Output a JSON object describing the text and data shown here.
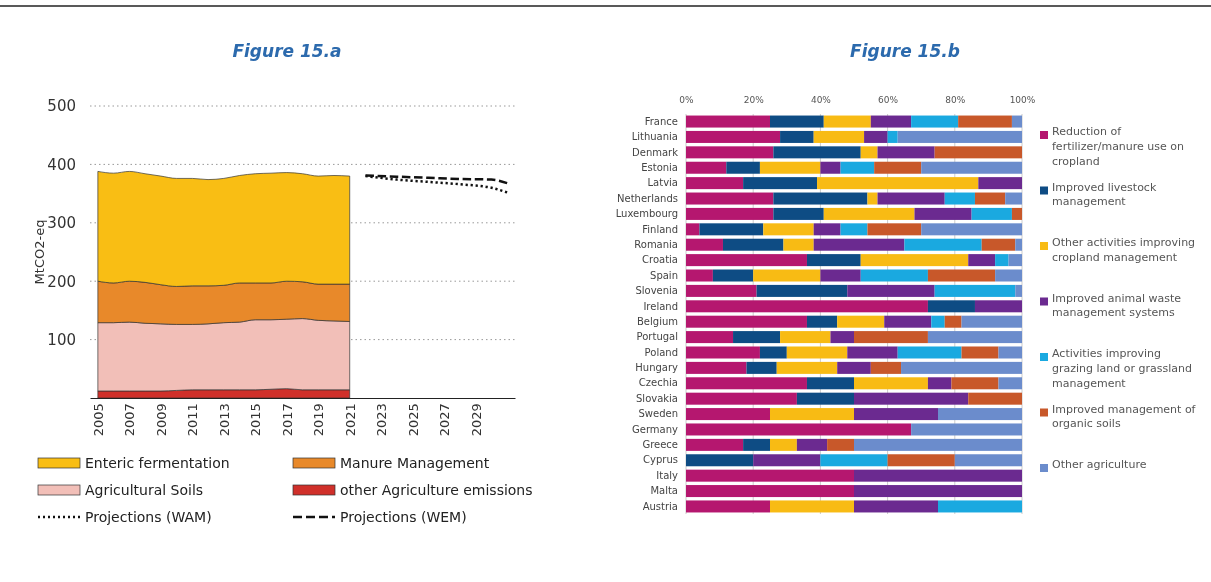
{
  "chart_data": [
    {
      "type": "area",
      "title": "Figure 15.a",
      "ylabel": "MtCO2-eq",
      "stacked": true,
      "grid": "y",
      "legend": "bottom",
      "x": [
        2005,
        2006,
        2007,
        2008,
        2009,
        2010,
        2011,
        2012,
        2013,
        2014,
        2015,
        2016,
        2017,
        2018,
        2019,
        2020,
        2021
      ],
      "xlim": [
        2004.5,
        2031.5
      ],
      "xticks": [
        2005,
        2007,
        2009,
        2011,
        2013,
        2015,
        2017,
        2019,
        2021,
        2023,
        2025,
        2027,
        2029
      ],
      "ylim": [
        0,
        500
      ],
      "yticks": [
        100,
        200,
        300,
        400,
        500
      ],
      "series": [
        {
          "name": "other Agriculture emissions",
          "color": "#d0302a",
          "values": [
            12,
            12,
            12,
            12,
            12,
            13,
            14,
            14,
            14,
            14,
            14,
            15,
            16,
            14,
            14,
            14,
            14
          ]
        },
        {
          "name": "Agricultural Soils",
          "color": "#f2bfb8",
          "values": [
            117,
            117,
            118,
            116,
            115,
            113,
            112,
            113,
            115,
            116,
            120,
            119,
            119,
            122,
            119,
            118,
            117
          ]
        },
        {
          "name": "Manure Management",
          "color": "#e8892a",
          "values": [
            71,
            68,
            70,
            70,
            67,
            65,
            66,
            65,
            64,
            67,
            63,
            63,
            65,
            63,
            62,
            63,
            64
          ]
        },
        {
          "name": "Enteric fermentation",
          "color": "#f9be14",
          "values": [
            188,
            188,
            188,
            186,
            186,
            185,
            184,
            182,
            183,
            184,
            187,
            188,
            186,
            185,
            185,
            186,
            185
          ]
        },
        {
          "name": "Projections (WAM)",
          "type": "line",
          "line_style": "dotted",
          "color": "#111111",
          "x": [
            2022,
            2024,
            2026,
            2028,
            2030,
            2031
          ],
          "values": [
            380,
            374,
            370,
            366,
            360,
            352
          ]
        },
        {
          "name": "Projections (WEM)",
          "type": "line",
          "line_style": "dashed",
          "color": "#111111",
          "x": [
            2022,
            2024,
            2026,
            2028,
            2030,
            2031
          ],
          "values": [
            381,
            379,
            377,
            375,
            374,
            368
          ]
        }
      ]
    },
    {
      "type": "bar",
      "title": "Figure 15.b",
      "orientation": "horizontal",
      "stacked": true,
      "grid": "x",
      "legend": "right",
      "categories": [
        "France",
        "Lithuania",
        "Denmark",
        "Estonia",
        "Latvia",
        "Netherlands",
        "Luxembourg",
        "Finland",
        "Romania",
        "Croatia",
        "Spain",
        "Slovenia",
        "Ireland",
        "Belgium",
        "Portugal",
        "Poland",
        "Hungary",
        "Czechia",
        "Slovakia",
        "Sweden",
        "Germany",
        "Greece",
        "Cyprus",
        "Italy",
        "Malta",
        "Austria"
      ],
      "xlim": [
        0,
        100
      ],
      "xticks": [
        {
          "value": 0,
          "label": "0%"
        },
        {
          "value": 20,
          "label": "20%"
        },
        {
          "value": 40,
          "label": "40%"
        },
        {
          "value": 60,
          "label": "60%"
        },
        {
          "value": 80,
          "label": "80%"
        },
        {
          "value": 100,
          "label": "100%"
        }
      ],
      "series": [
        {
          "name": "Reduction of fertilizer/manure use on cropland",
          "color": "#b5176f",
          "values": [
            25,
            28,
            26,
            12,
            17,
            26,
            26,
            4,
            11,
            36,
            8,
            21,
            72,
            36,
            14,
            22,
            18,
            36,
            33,
            25,
            67,
            17,
            0,
            50,
            50,
            25
          ]
        },
        {
          "name": "Improved livestock management",
          "color": "#0e4c84",
          "values": [
            16,
            10,
            26,
            10,
            22,
            28,
            15,
            19,
            18,
            16,
            12,
            27,
            14,
            9,
            14,
            8,
            9,
            14,
            17,
            0,
            0,
            8,
            20,
            0,
            0,
            0
          ]
        },
        {
          "name": "Other activities improving cropland management",
          "color": "#f8bb14",
          "values": [
            14,
            15,
            5,
            18,
            48,
            3,
            27,
            15,
            9,
            32,
            20,
            0,
            0,
            14,
            15,
            18,
            18,
            22,
            0,
            25,
            0,
            8,
            0,
            0,
            0,
            25
          ]
        },
        {
          "name": "Improved animal waste management systems",
          "color": "#6b2a90",
          "values": [
            12,
            7,
            17,
            6,
            13,
            20,
            17,
            8,
            27,
            8,
            12,
            26,
            14,
            14,
            7,
            15,
            10,
            7,
            34,
            25,
            0,
            9,
            20,
            50,
            50,
            25
          ]
        },
        {
          "name": "Activities improving grazing land or grassland management",
          "color": "#1aa9e0",
          "values": [
            14,
            3,
            0,
            10,
            0,
            9,
            12,
            8,
            23,
            4,
            20,
            24,
            0,
            4,
            0,
            19,
            0,
            0,
            0,
            0,
            0,
            0,
            20,
            0,
            0,
            25
          ]
        },
        {
          "name": "Improved management of organic soils",
          "color": "#c8582a",
          "values": [
            16,
            0,
            26,
            14,
            0,
            9,
            3,
            16,
            10,
            0,
            20,
            0,
            0,
            5,
            22,
            11,
            9,
            14,
            16,
            0,
            0,
            8,
            20,
            0,
            0,
            0
          ]
        },
        {
          "name": "Other agriculture",
          "color": "#6b8ccc",
          "values": [
            3,
            37,
            0,
            30,
            0,
            5,
            0,
            30,
            2,
            4,
            8,
            2,
            0,
            18,
            28,
            7,
            36,
            7,
            0,
            25,
            33,
            50,
            20,
            0,
            0,
            0
          ]
        }
      ]
    }
  ]
}
